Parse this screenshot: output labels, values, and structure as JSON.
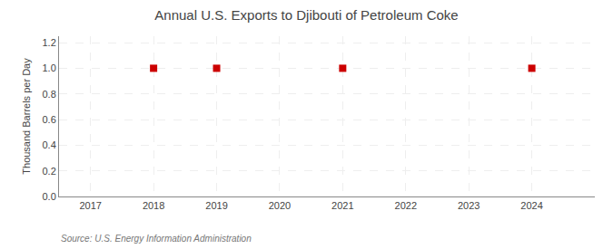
{
  "chart_data": {
    "type": "scatter",
    "title": "Annual U.S. Exports to Djibouti of Petroleum Coke",
    "ylabel": "Thousand Barrels per Day",
    "annotations": [
      "Source: U.S. Energy Information Administration"
    ],
    "x": [
      2018,
      2019,
      2021,
      2024
    ],
    "values": [
      1.0,
      1.0,
      1.0,
      1.0
    ],
    "color": "#cc0000",
    "marker": "square",
    "xlim": [
      2016.5,
      2025.0
    ],
    "ylim": [
      0.0,
      1.25
    ],
    "xticks": [
      2017,
      2018,
      2019,
      2020,
      2021,
      2022,
      2023,
      2024
    ],
    "yticks": [
      {
        "value": 0.0,
        "label": "0.0"
      },
      0.2,
      0.4,
      0.6,
      0.8,
      {
        "value": 1.0,
        "label": "1.0"
      },
      1.2
    ],
    "grid": true
  }
}
